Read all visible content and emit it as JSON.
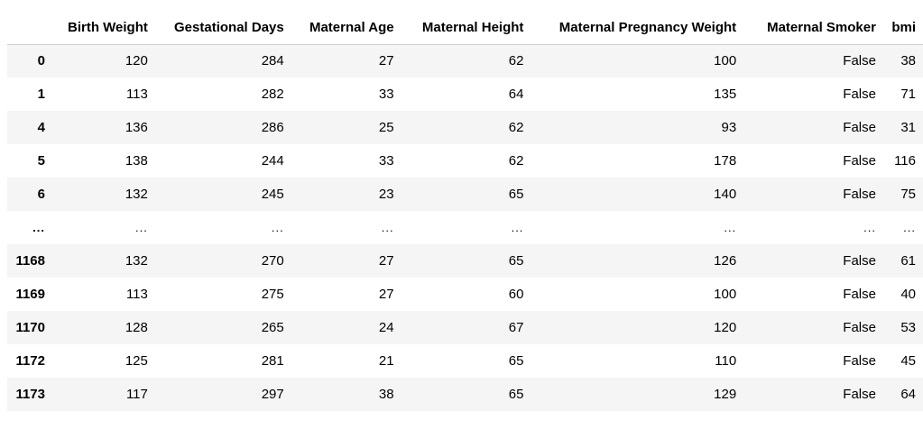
{
  "table": {
    "columns": [
      "Birth Weight",
      "Gestational Days",
      "Maternal Age",
      "Maternal Height",
      "Maternal Pregnancy Weight",
      "Maternal Smoker",
      "bmi"
    ],
    "rows": [
      {
        "index": "0",
        "cells": [
          "120",
          "284",
          "27",
          "62",
          "100",
          "False",
          "38"
        ]
      },
      {
        "index": "1",
        "cells": [
          "113",
          "282",
          "33",
          "64",
          "135",
          "False",
          "71"
        ]
      },
      {
        "index": "4",
        "cells": [
          "136",
          "286",
          "25",
          "62",
          "93",
          "False",
          "31"
        ]
      },
      {
        "index": "5",
        "cells": [
          "138",
          "244",
          "33",
          "62",
          "178",
          "False",
          "116"
        ]
      },
      {
        "index": "6",
        "cells": [
          "132",
          "245",
          "23",
          "65",
          "140",
          "False",
          "75"
        ]
      },
      {
        "index": "...",
        "cells": [
          "...",
          "...",
          "...",
          "...",
          "...",
          "...",
          "..."
        ]
      },
      {
        "index": "1168",
        "cells": [
          "132",
          "270",
          "27",
          "65",
          "126",
          "False",
          "61"
        ]
      },
      {
        "index": "1169",
        "cells": [
          "113",
          "275",
          "27",
          "60",
          "100",
          "False",
          "40"
        ]
      },
      {
        "index": "1170",
        "cells": [
          "128",
          "265",
          "24",
          "67",
          "120",
          "False",
          "53"
        ]
      },
      {
        "index": "1172",
        "cells": [
          "125",
          "281",
          "21",
          "65",
          "110",
          "False",
          "45"
        ]
      },
      {
        "index": "1173",
        "cells": [
          "117",
          "297",
          "38",
          "65",
          "129",
          "False",
          "64"
        ]
      }
    ]
  }
}
